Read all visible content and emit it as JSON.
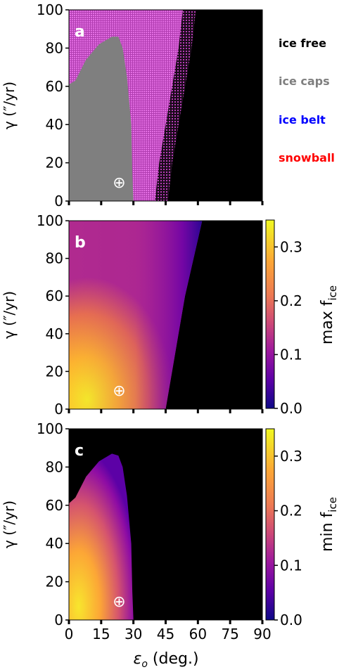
{
  "chart_data": [
    {
      "type": "heatmap",
      "panel_label": "a",
      "xlabel": "",
      "ylabel": "γ (″/yr)",
      "xlim": [
        0,
        90
      ],
      "ylim": [
        0,
        100
      ],
      "xticks": [
        0,
        15,
        30,
        45,
        60,
        75,
        90
      ],
      "yticks": [
        "0",
        "20",
        "40",
        "60",
        "80",
        "100"
      ],
      "categories": [
        "ice free",
        "ice caps",
        "ice belt",
        "snowball"
      ],
      "colors": {
        "ice free": "#000000",
        "ice caps": "#7f7f7f",
        "ice belt": "#0000ff",
        "snowball": "#ff0000",
        "hatch": "#d43fd4"
      },
      "regions": {
        "ice_caps_boundary": [
          [
            0,
            0
          ],
          [
            0,
            61
          ],
          [
            3,
            63
          ],
          [
            8,
            74
          ],
          [
            14,
            82
          ],
          [
            20,
            86
          ],
          [
            23,
            86
          ],
          [
            25,
            80
          ],
          [
            27,
            65
          ],
          [
            29,
            40
          ],
          [
            29.5,
            15
          ],
          [
            30,
            0
          ]
        ],
        "ice_free_boundary": [
          [
            46,
            0
          ],
          [
            48,
            20
          ],
          [
            51,
            40
          ],
          [
            54,
            60
          ],
          [
            57,
            80
          ],
          [
            59,
            100
          ]
        ]
      },
      "earth_marker": {
        "x": 23.4,
        "y": 10,
        "symbol": "⊕"
      }
    },
    {
      "type": "heatmap",
      "panel_label": "b",
      "xlabel": "",
      "ylabel": "γ (″/yr)",
      "xlim": [
        0,
        90
      ],
      "ylim": [
        0,
        100
      ],
      "xticks": [
        0,
        15,
        30,
        45,
        60,
        75,
        90
      ],
      "yticks": [
        "0",
        "20",
        "40",
        "60",
        "80",
        "100"
      ],
      "colorbar": {
        "label": "max f",
        "label_sub": "ice",
        "range": [
          0,
          0.35
        ],
        "ticks": [
          "0.0",
          "0.1",
          "0.2",
          "0.3"
        ]
      },
      "ice_free_boundary": [
        [
          45,
          0
        ],
        [
          48,
          20
        ],
        [
          51,
          40
        ],
        [
          54,
          60
        ],
        [
          58,
          80
        ],
        [
          62,
          100
        ]
      ],
      "earth_marker": {
        "x": 23.4,
        "y": 10,
        "symbol": "⊕"
      }
    },
    {
      "type": "heatmap",
      "panel_label": "c",
      "xlabel": "ε o (deg.)",
      "ylabel": "γ (″/yr)",
      "xlim": [
        0,
        90
      ],
      "ylim": [
        0,
        100
      ],
      "xticks": [
        0,
        15,
        30,
        45,
        60,
        75,
        90
      ],
      "yticks": [
        "0",
        "20",
        "40",
        "60",
        "80",
        "100"
      ],
      "colorbar": {
        "label": "min f",
        "label_sub": "ice",
        "range": [
          0,
          0.35
        ],
        "ticks": [
          "0.0",
          "0.1",
          "0.2",
          "0.3"
        ]
      },
      "region_boundary": [
        [
          0,
          0
        ],
        [
          0,
          61
        ],
        [
          3,
          64
        ],
        [
          8,
          75
        ],
        [
          14,
          83
        ],
        [
          20,
          87
        ],
        [
          23,
          86
        ],
        [
          25,
          80
        ],
        [
          27,
          65
        ],
        [
          29,
          40
        ],
        [
          29.5,
          15
        ],
        [
          30,
          0
        ]
      ],
      "earth_marker": {
        "x": 23.4,
        "y": 10,
        "symbol": "⊕"
      }
    }
  ]
}
